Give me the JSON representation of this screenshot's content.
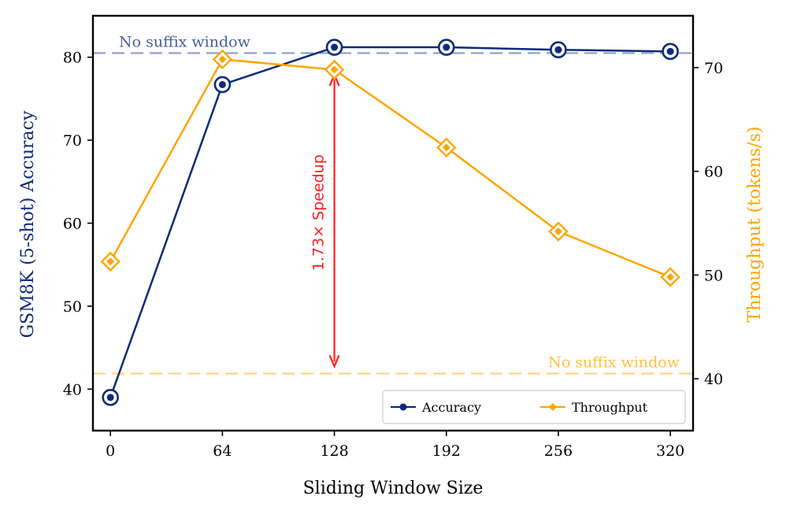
{
  "chart_data": {
    "type": "line",
    "xlabel": "Sliding Window Size",
    "x": [
      0,
      64,
      128,
      192,
      256,
      320
    ],
    "x_ticks": [
      "0",
      "64",
      "128",
      "192",
      "256",
      "320"
    ],
    "xlim": [
      -10,
      333
    ],
    "left_axis": {
      "label": "GSM8K (5-shot) Accuracy",
      "color": "#0b2a7a",
      "ylim": [
        35,
        85
      ],
      "ticks": [
        "40",
        "50",
        "60",
        "70",
        "80"
      ]
    },
    "right_axis": {
      "label": "Throughput (tokens/s)",
      "color": "#ffa500",
      "ylim": [
        35,
        75
      ],
      "ticks": [
        "40",
        "50",
        "60",
        "70"
      ]
    },
    "series": [
      {
        "name": "Accuracy",
        "axis": "left",
        "color": "#0b2a7a",
        "marker": "circle",
        "values": [
          39.0,
          76.7,
          81.2,
          81.2,
          80.9,
          80.7
        ]
      },
      {
        "name": "Throughput",
        "axis": "right",
        "color": "#ffa500",
        "marker": "diamond",
        "values": [
          51.3,
          70.8,
          69.8,
          62.3,
          54.2,
          49.8
        ]
      }
    ],
    "reference_lines": [
      {
        "axis": "left",
        "value": 80.5,
        "label": "No suffix window",
        "color": "#8a9cc6",
        "text_color": "#4a5fa0",
        "label_position": "top-left"
      },
      {
        "axis": "right",
        "value": 40.5,
        "label": "No suffix window",
        "color": "#ffd27a",
        "text_color": "#ffbf40",
        "label_position": "top-right"
      }
    ],
    "annotation": {
      "text": "1.73× Speedup",
      "color": "#ff2020",
      "x": 128,
      "from_right_value": 41.2,
      "to_right_value": 69.3
    },
    "legend": {
      "position": "lower-right",
      "columns": 2
    },
    "grid": false
  }
}
